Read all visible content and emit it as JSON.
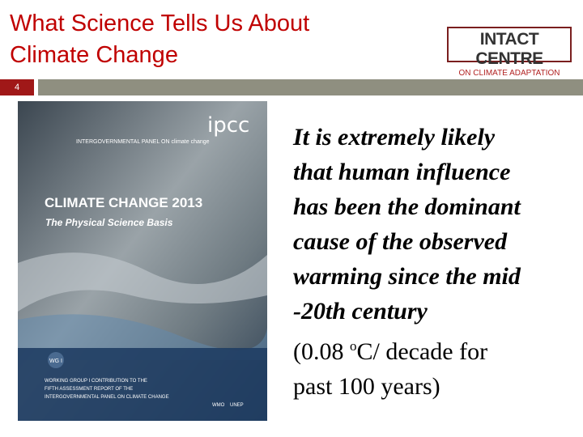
{
  "header": {
    "title_lines": [
      "What Science Tells Us About",
      "Climate Change"
    ],
    "logo": {
      "name": "INTACT CENTRE",
      "tagline": "ON CLIMATE ADAPTATION"
    },
    "slide_number": "4"
  },
  "cover": {
    "brand": "ipcc",
    "org": "INTERGOVERNMENTAL PANEL ON climate change",
    "title": "CLIMATE CHANGE 2013",
    "subtitle": "The Physical Science Basis",
    "badge": "WG I",
    "footer_lines": [
      "WORKING GROUP I CONTRIBUTION TO THE",
      "FIFTH ASSESSMENT REPORT OF THE",
      "INTERGOVERNMENTAL PANEL ON CLIMATE CHANGE"
    ],
    "logos": [
      "WMO",
      "UNEP"
    ]
  },
  "body": {
    "statement_lines": [
      "It is extremely likely",
      "that human influence",
      "has been the dominant",
      "cause of the observed",
      "warming since the mid",
      "-20th century"
    ],
    "note": {
      "prefix": "(0.08 ",
      "superscript": "o",
      "suffix": "C/ decade for",
      "line2": "past 100 years)"
    }
  }
}
